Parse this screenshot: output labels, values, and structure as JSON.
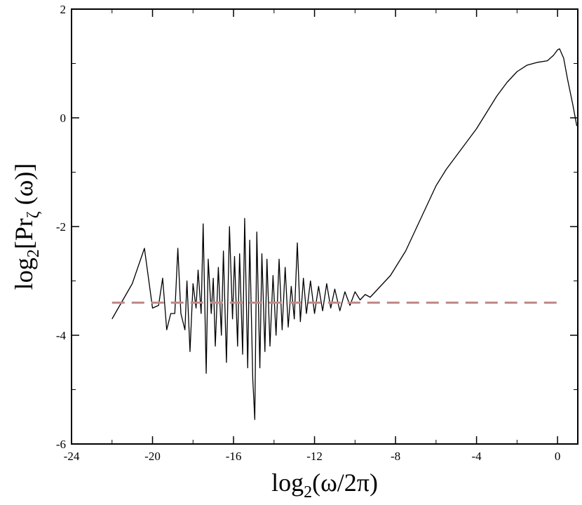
{
  "chart_data": {
    "type": "line",
    "title": "",
    "xlabel": {
      "text": "log",
      "sub": "2",
      "rest": "(ω/2π)"
    },
    "ylabel": {
      "text": "log",
      "sub": "2",
      "mid": "[Pr",
      "sub2": "ζ",
      "rest": " (ω)]"
    },
    "xlim": [
      -24,
      1
    ],
    "ylim": [
      -6,
      2
    ],
    "xticks": [
      -24,
      -20,
      -16,
      -12,
      -8,
      -4,
      0
    ],
    "yticks": [
      -6,
      -4,
      -2,
      0,
      2
    ],
    "grid": false,
    "legend": "none",
    "series": [
      {
        "color": "#000000",
        "style": "solid",
        "points": [
          [
            -22.0,
            -3.7
          ],
          [
            -21.0,
            -3.05
          ],
          [
            -20.4,
            -2.4
          ],
          [
            -20.0,
            -3.5
          ],
          [
            -19.7,
            -3.45
          ],
          [
            -19.5,
            -2.95
          ],
          [
            -19.3,
            -3.9
          ],
          [
            -19.1,
            -3.6
          ],
          [
            -18.9,
            -3.6
          ],
          [
            -18.75,
            -2.4
          ],
          [
            -18.6,
            -3.6
          ],
          [
            -18.4,
            -3.9
          ],
          [
            -18.3,
            -3.0
          ],
          [
            -18.15,
            -4.3
          ],
          [
            -18.0,
            -3.05
          ],
          [
            -17.85,
            -3.5
          ],
          [
            -17.75,
            -2.8
          ],
          [
            -17.6,
            -3.6
          ],
          [
            -17.5,
            -1.95
          ],
          [
            -17.35,
            -4.7
          ],
          [
            -17.25,
            -2.6
          ],
          [
            -17.1,
            -3.6
          ],
          [
            -17.0,
            -2.95
          ],
          [
            -16.9,
            -4.2
          ],
          [
            -16.75,
            -2.75
          ],
          [
            -16.6,
            -4.0
          ],
          [
            -16.5,
            -2.45
          ],
          [
            -16.35,
            -4.5
          ],
          [
            -16.2,
            -2.0
          ],
          [
            -16.05,
            -3.7
          ],
          [
            -15.95,
            -2.55
          ],
          [
            -15.8,
            -4.2
          ],
          [
            -15.7,
            -2.5
          ],
          [
            -15.55,
            -4.35
          ],
          [
            -15.45,
            -1.85
          ],
          [
            -15.3,
            -4.6
          ],
          [
            -15.2,
            -2.25
          ],
          [
            -15.05,
            -4.8
          ],
          [
            -14.95,
            -5.55
          ],
          [
            -14.85,
            -2.1
          ],
          [
            -14.7,
            -4.6
          ],
          [
            -14.6,
            -2.5
          ],
          [
            -14.45,
            -4.3
          ],
          [
            -14.35,
            -2.6
          ],
          [
            -14.2,
            -4.2
          ],
          [
            -14.05,
            -2.9
          ],
          [
            -13.9,
            -4.0
          ],
          [
            -13.75,
            -2.6
          ],
          [
            -13.6,
            -3.9
          ],
          [
            -13.45,
            -2.75
          ],
          [
            -13.3,
            -3.85
          ],
          [
            -13.15,
            -3.1
          ],
          [
            -13.0,
            -3.7
          ],
          [
            -12.85,
            -2.3
          ],
          [
            -12.7,
            -3.75
          ],
          [
            -12.55,
            -2.95
          ],
          [
            -12.4,
            -3.6
          ],
          [
            -12.2,
            -3.0
          ],
          [
            -12.0,
            -3.6
          ],
          [
            -11.8,
            -3.1
          ],
          [
            -11.6,
            -3.55
          ],
          [
            -11.4,
            -3.05
          ],
          [
            -11.2,
            -3.5
          ],
          [
            -11.0,
            -3.15
          ],
          [
            -10.75,
            -3.55
          ],
          [
            -10.5,
            -3.2
          ],
          [
            -10.25,
            -3.45
          ],
          [
            -10.0,
            -3.2
          ],
          [
            -9.75,
            -3.35
          ],
          [
            -9.5,
            -3.25
          ],
          [
            -9.25,
            -3.3
          ],
          [
            -9.0,
            -3.2
          ],
          [
            -8.75,
            -3.1
          ],
          [
            -8.5,
            -3.0
          ],
          [
            -8.25,
            -2.9
          ],
          [
            -8.0,
            -2.75
          ],
          [
            -7.75,
            -2.6
          ],
          [
            -7.5,
            -2.45
          ],
          [
            -7.25,
            -2.25
          ],
          [
            -7.0,
            -2.05
          ],
          [
            -6.75,
            -1.85
          ],
          [
            -6.5,
            -1.65
          ],
          [
            -6.25,
            -1.45
          ],
          [
            -6.0,
            -1.25
          ],
          [
            -5.5,
            -0.95
          ],
          [
            -5.0,
            -0.7
          ],
          [
            -4.5,
            -0.45
          ],
          [
            -4.0,
            -0.2
          ],
          [
            -3.5,
            0.1
          ],
          [
            -3.0,
            0.4
          ],
          [
            -2.5,
            0.65
          ],
          [
            -2.0,
            0.85
          ],
          [
            -1.5,
            0.97
          ],
          [
            -1.0,
            1.02
          ],
          [
            -0.5,
            1.05
          ],
          [
            -0.2,
            1.15
          ],
          [
            0.0,
            1.25
          ],
          [
            0.1,
            1.27
          ],
          [
            0.3,
            1.1
          ],
          [
            0.5,
            0.7
          ],
          [
            0.75,
            0.25
          ],
          [
            0.95,
            -0.15
          ]
        ]
      },
      {
        "color": "#c08a8a",
        "style": "dashed",
        "points": [
          [
            -22.0,
            -3.4
          ],
          [
            0.0,
            -3.4
          ]
        ]
      }
    ]
  }
}
